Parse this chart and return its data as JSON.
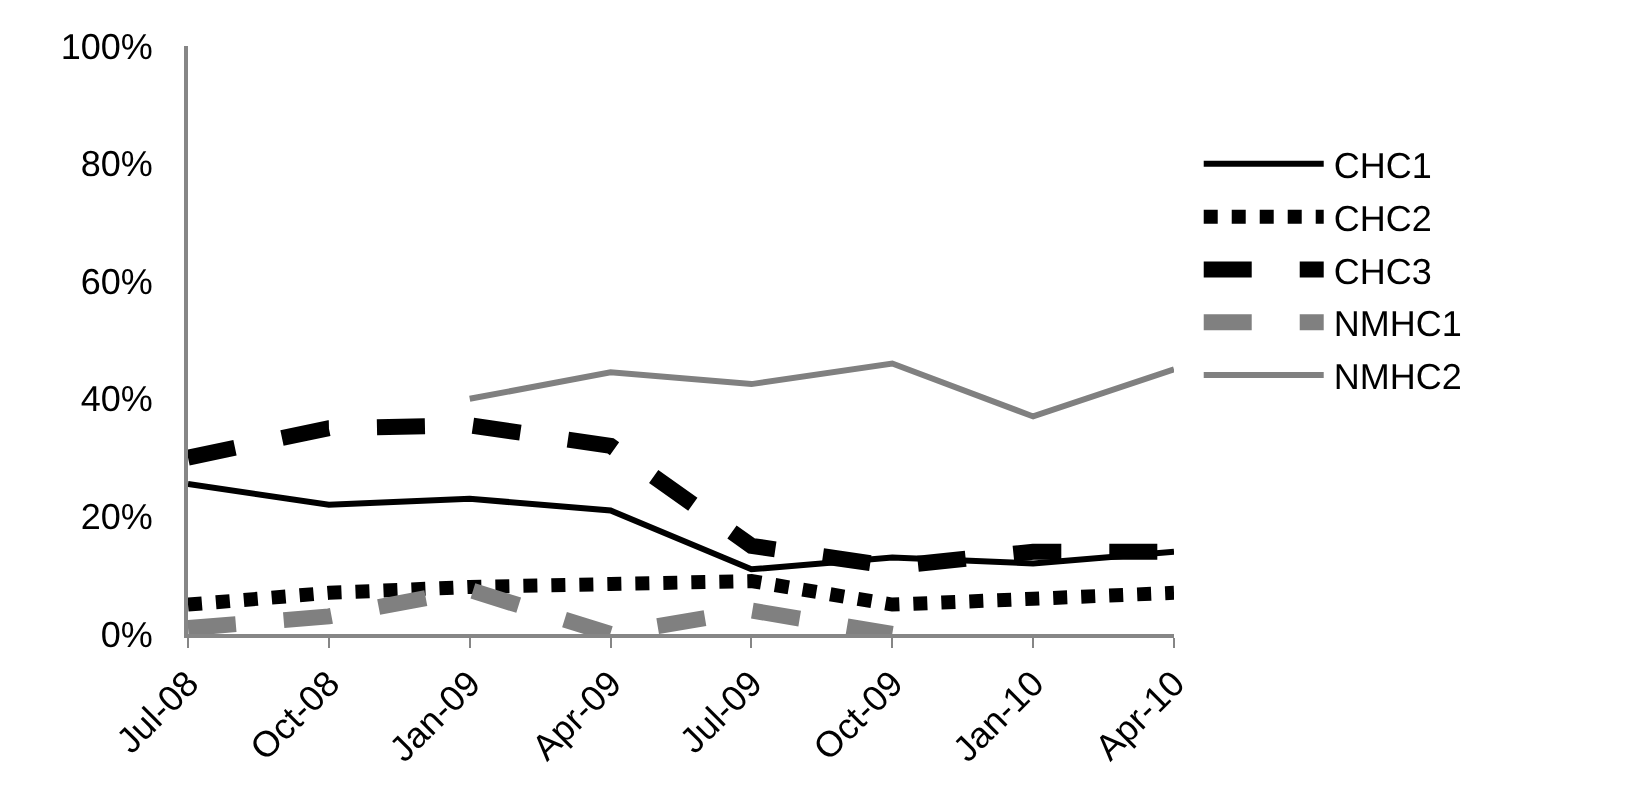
{
  "chart_data": {
    "type": "line",
    "categories": [
      "Jul-08",
      "Oct-08",
      "Jan-09",
      "Apr-09",
      "Jul-09",
      "Oct-09",
      "Jan-10",
      "Apr-10"
    ],
    "series": [
      {
        "name": "CHC1",
        "color": "#000000",
        "line_style": "solid",
        "values": [
          25.5,
          22,
          23,
          21,
          11,
          13,
          12,
          14
        ]
      },
      {
        "name": "CHC2",
        "color": "#000000",
        "line_style": "dotted",
        "values": [
          5,
          7,
          8,
          8.5,
          9,
          5,
          6,
          7
        ]
      },
      {
        "name": "CHC3",
        "color": "#000000",
        "line_style": "dashed",
        "values": [
          30,
          35,
          35.5,
          32,
          15,
          11.5,
          14,
          14
        ]
      },
      {
        "name": "NMHC1",
        "color": "#808080",
        "line_style": "dashed",
        "values": [
          1,
          3,
          7.5,
          0,
          4,
          0,
          null,
          null
        ]
      },
      {
        "name": "NMHC2",
        "color": "#808080",
        "line_style": "solid",
        "values": [
          null,
          null,
          40,
          44.5,
          42.5,
          46,
          37,
          45
        ]
      }
    ],
    "ylim": [
      0,
      100
    ],
    "yticks": [
      {
        "value": 0,
        "label": "0%"
      },
      {
        "value": 20,
        "label": "20%"
      },
      {
        "value": 40,
        "label": "40%"
      },
      {
        "value": 60,
        "label": "60%"
      },
      {
        "value": 80,
        "label": "80%"
      },
      {
        "value": 100,
        "label": "100%"
      }
    ],
    "grid": false,
    "legend": "right",
    "marker": "none"
  }
}
